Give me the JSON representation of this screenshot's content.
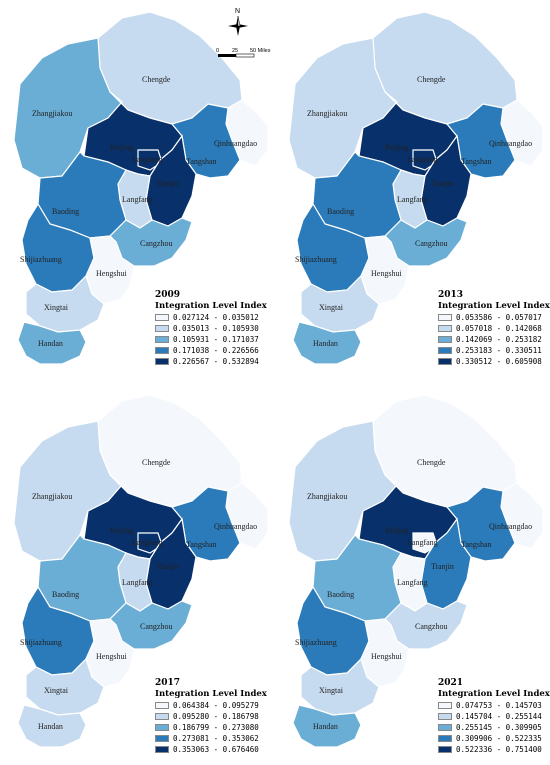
{
  "colors": [
    "#f4f8fd",
    "#c6dbef",
    "#6aaed6",
    "#2b7bba",
    "#08306b"
  ],
  "compass": {
    "north_label": "N"
  },
  "scale": {
    "t0": "0",
    "t1": "25",
    "t2": "50 Miles"
  },
  "cities": {
    "chengde": "Chengde",
    "zhangjiakou": "Zhangjiakou",
    "qinhuangdao": "Qinhuangdao",
    "beijing": "Beijing",
    "langfang_n": "Langfang",
    "tangshan": "Tangshan",
    "tianjin": "Tianjin",
    "langfang_s": "Langfang",
    "baoding": "Baoding",
    "cangzhou": "Cangzhou",
    "shijiazhuang": "Shijiazhuang",
    "hengshui": "Hengshui",
    "xingtai": "Xingtai",
    "handan": "Handan"
  },
  "legend_title": "Integration Level Index",
  "maps": [
    {
      "year": "2009",
      "ranges": [
        "0.027124 - 0.035012",
        "0.035013 - 0.105930",
        "0.105931 - 0.171037",
        "0.171038 - 0.226566",
        "0.226567 - 0.532894"
      ],
      "levels": {
        "chengde": 1,
        "zhangjiakou": 2,
        "qinhuangdao": 0,
        "beijing": 4,
        "langfang_n": 4,
        "tangshan": 3,
        "tianjin": 4,
        "langfang_s": 1,
        "baoding": 3,
        "cangzhou": 2,
        "shijiazhuang": 3,
        "hengshui": 0,
        "xingtai": 1,
        "handan": 2
      }
    },
    {
      "year": "2013",
      "ranges": [
        "0.053586 - 0.057017",
        "0.057018 - 0.142068",
        "0.142069 - 0.253182",
        "0.253183 - 0.330511",
        "0.330512 - 0.605908"
      ],
      "levels": {
        "chengde": 1,
        "zhangjiakou": 1,
        "qinhuangdao": 0,
        "beijing": 4,
        "langfang_n": 4,
        "tangshan": 3,
        "tianjin": 4,
        "langfang_s": 1,
        "baoding": 3,
        "cangzhou": 2,
        "shijiazhuang": 3,
        "hengshui": 0,
        "xingtai": 1,
        "handan": 2
      }
    },
    {
      "year": "2017",
      "ranges": [
        "0.064384 - 0.095279",
        "0.095280 - 0.186798",
        "0.186799 - 0.273080",
        "0.273081 - 0.353062",
        "0.353063 - 0.676460"
      ],
      "levels": {
        "chengde": 0,
        "zhangjiakou": 1,
        "qinhuangdao": 0,
        "beijing": 4,
        "langfang_n": 4,
        "tangshan": 3,
        "tianjin": 4,
        "langfang_s": 1,
        "baoding": 2,
        "cangzhou": 2,
        "shijiazhuang": 3,
        "hengshui": 0,
        "xingtai": 1,
        "handan": 1
      }
    },
    {
      "year": "2021",
      "ranges": [
        "0.074753 - 0.145703",
        "0.145704 - 0.255144",
        "0.255145 - 0.309905",
        "0.309906 - 0.522335",
        "0.522336 - 0.751400"
      ],
      "levels": {
        "chengde": 0,
        "zhangjiakou": 1,
        "qinhuangdao": 0,
        "beijing": 4,
        "langfang_n": 0,
        "tangshan": 3,
        "tianjin": 3,
        "langfang_s": 0,
        "baoding": 2,
        "cangzhou": 1,
        "shijiazhuang": 3,
        "hengshui": 0,
        "xingtai": 1,
        "handan": 2
      }
    }
  ]
}
